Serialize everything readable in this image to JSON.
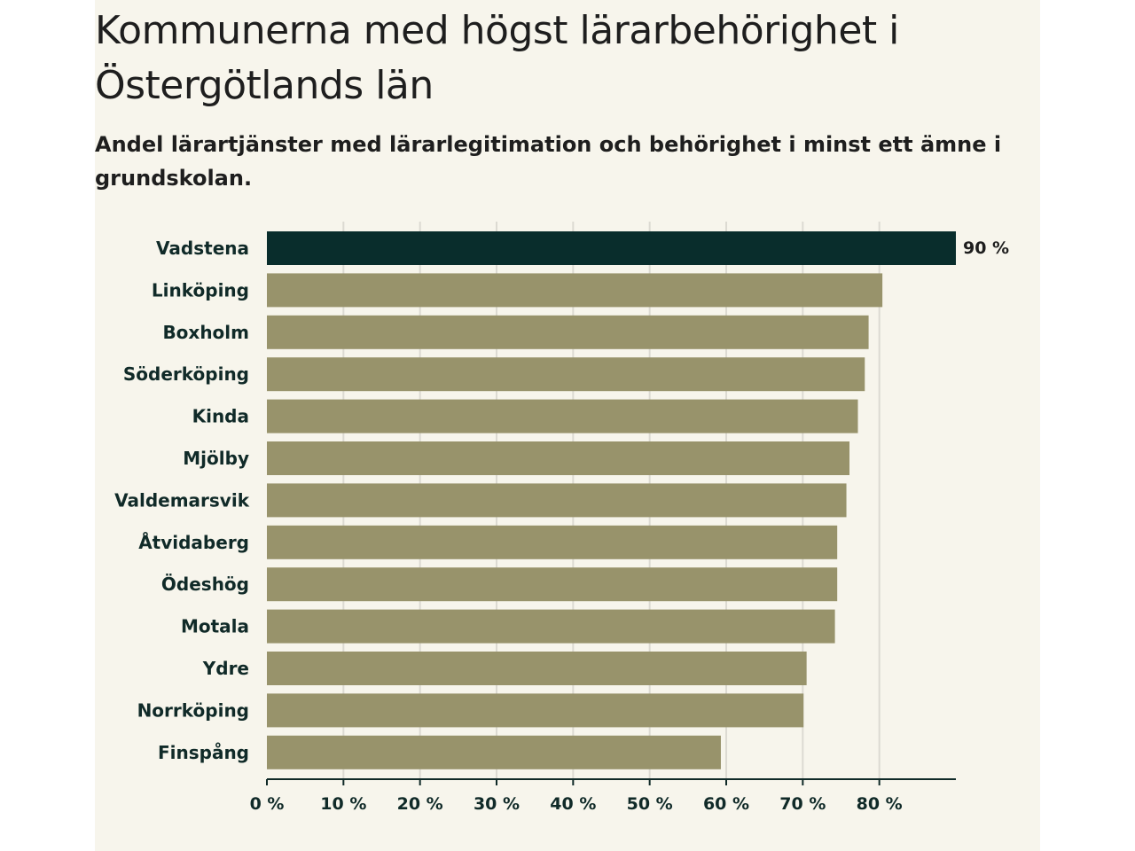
{
  "header": {
    "title": "Kommunerna med högst lärarbehörighet i Östergötlands län",
    "subtitle": "Andel lärartjänster med lärarlegitimation och behörighet i minst ett ämne i grundskolan."
  },
  "colors": {
    "background": "#f7f5ec",
    "highlight_bar": "#092d2c",
    "bar": "#98936b",
    "grid": "#dcdad2",
    "axis": "#102a28"
  },
  "chart_data": {
    "type": "bar",
    "orientation": "horizontal",
    "title": "Kommunerna med högst lärarbehörighet i Östergötlands län",
    "subtitle": "Andel lärartjänster med lärarlegitimation och behörighet i minst ett ämne i grundskolan.",
    "categories": [
      "Vadstena",
      "Linköping",
      "Boxholm",
      "Söderköping",
      "Kinda",
      "Mjölby",
      "Valdemarsvik",
      "Åtvidaberg",
      "Ödeshög",
      "Motala",
      "Ydre",
      "Norrköping",
      "Finspång"
    ],
    "values": [
      90,
      80.4,
      78.6,
      78.1,
      77.2,
      76.1,
      75.7,
      74.5,
      74.5,
      74.2,
      70.5,
      70.1,
      59.3
    ],
    "highlight": "Vadstena",
    "data_labels": [
      {
        "category": "Vadstena",
        "text": "90 %"
      }
    ],
    "xlim": [
      0,
      90
    ],
    "xticks": [
      0,
      10,
      20,
      30,
      40,
      50,
      60,
      70,
      80
    ],
    "xtick_labels": [
      "0 %",
      "10 %",
      "20 %",
      "30 %",
      "40 %",
      "50 %",
      "60 %",
      "70 %",
      "80 %"
    ],
    "xlabel": "",
    "ylabel": "",
    "grid": true
  }
}
